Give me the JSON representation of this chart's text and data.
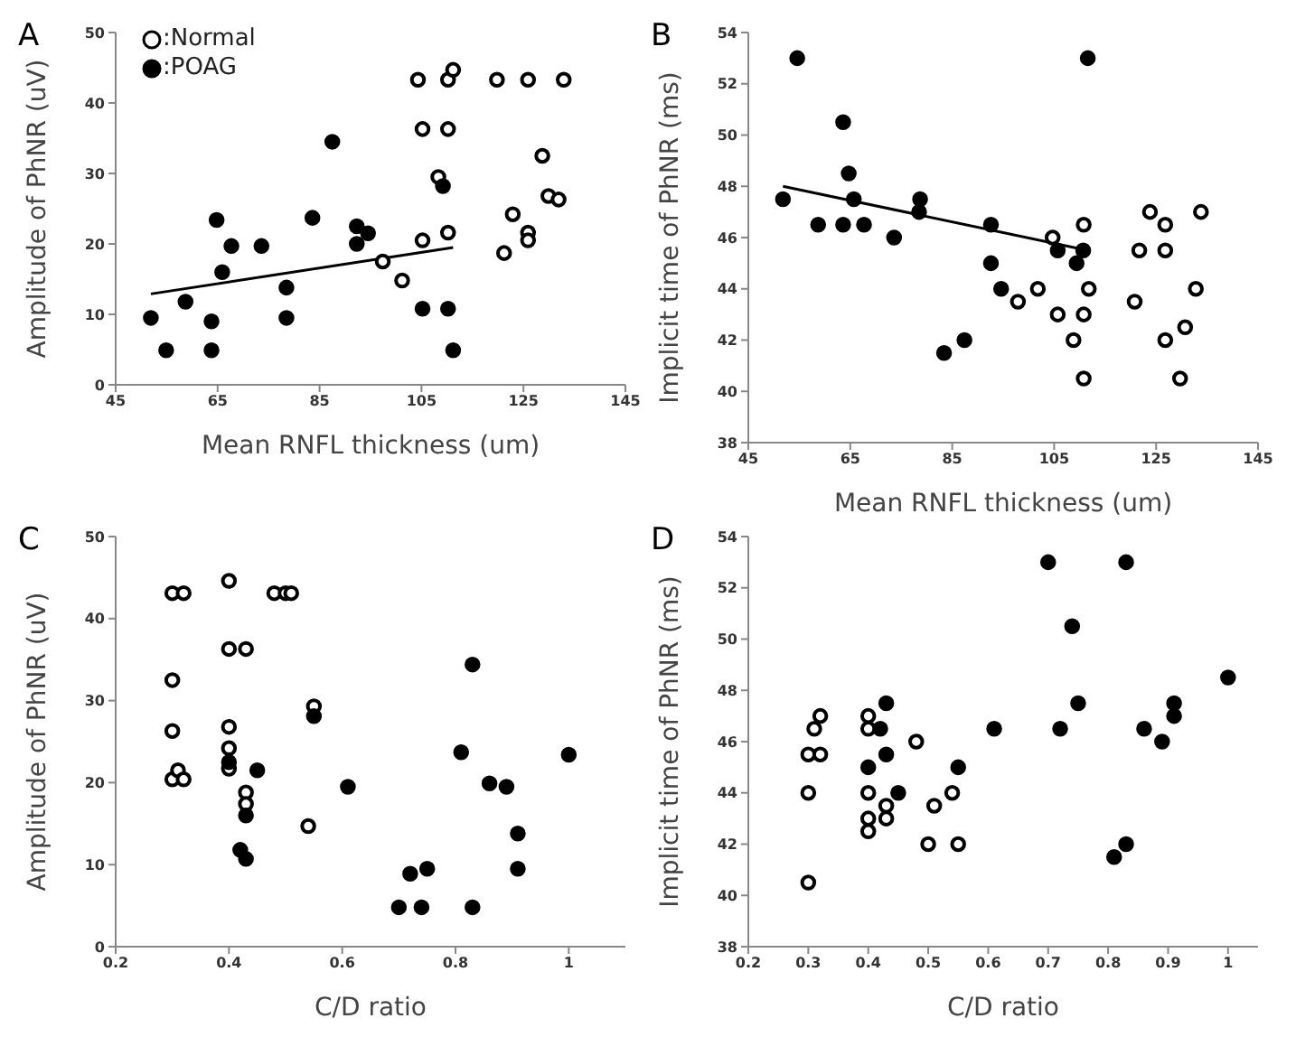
{
  "chart_data": [
    {
      "type": "scatter",
      "title": "A",
      "xlabel": "Mean RNFL thickness (um)",
      "ylabel": "Amplitude of PhNR (uV)",
      "xlim": [
        45,
        145
      ],
      "xticks": [
        45,
        65,
        85,
        105,
        125,
        145
      ],
      "ylim": [
        0,
        50
      ],
      "yticks": [
        0,
        10,
        20,
        30,
        40,
        50
      ],
      "grid": false,
      "legend": "top left",
      "marker": "circle",
      "series": [
        {
          "name": ":Normal",
          "color": "#ffffff",
          "x": [
            104.3,
            110.2,
            111.2,
            105.2,
            110.2,
            108.3,
            105.2,
            110.2,
            97.4,
            101.2,
            119.8,
            125.9,
            132.9,
            128.7,
            129.9,
            131.9,
            122.9,
            125.9,
            125.9,
            121.2
          ],
          "values": [
            43.3,
            43.3,
            44.7,
            36.3,
            36.3,
            29.5,
            20.5,
            21.6,
            17.5,
            14.8,
            43.3,
            43.3,
            43.3,
            32.5,
            26.8,
            26.3,
            24.2,
            21.6,
            20.5,
            18.7
          ]
        },
        {
          "name": ":POAG",
          "color": "#000000",
          "x": [
            51.9,
            54.9,
            58.7,
            63.8,
            63.8,
            64.8,
            65.9,
            67.7,
            73.6,
            78.5,
            78.5,
            83.6,
            87.5,
            92.3,
            92.3,
            94.5,
            109.2,
            105.2,
            110.2,
            111.2
          ],
          "values": [
            9.5,
            4.9,
            11.8,
            9.0,
            4.9,
            23.4,
            16.0,
            19.7,
            19.7,
            13.8,
            9.5,
            23.7,
            34.5,
            22.5,
            20.0,
            21.5,
            28.2,
            10.8,
            10.8,
            4.9
          ]
        },
        {
          "type": "line",
          "color": "#000000",
          "marker": "none",
          "line_style": "solid",
          "x": [
            51.9,
            111.2
          ],
          "values": [
            12.9,
            19.5
          ]
        }
      ]
    },
    {
      "type": "scatter",
      "title": "B",
      "xlabel": "Mean RNFL thickness (um)",
      "ylabel": "Implicit time of PhNR (ms)",
      "xlim": [
        45,
        145
      ],
      "xticks": [
        45,
        65,
        85,
        105,
        125,
        145
      ],
      "ylim": [
        38,
        54
      ],
      "yticks": [
        38,
        40,
        42,
        44,
        46,
        48,
        50,
        52,
        54
      ],
      "grid": false,
      "marker": "circle",
      "series": [
        {
          "color": "#ffffff",
          "x": [
            104.7,
            97.9,
            101.8,
            105.7,
            108.8,
            110.8,
            110.8,
            111.8,
            110.8,
            120.8,
            121.7,
            123.8,
            126.8,
            126.8,
            126.8,
            129.7,
            130.7,
            132.8,
            133.8
          ],
          "values": [
            46.0,
            43.5,
            44.0,
            43.0,
            42.0,
            43.0,
            46.5,
            44.0,
            40.5,
            43.5,
            45.5,
            47.0,
            46.5,
            45.5,
            42.0,
            40.5,
            42.5,
            44.0,
            47.0
          ]
        },
        {
          "color": "#000000",
          "x": [
            51.8,
            54.6,
            58.7,
            63.6,
            63.6,
            64.7,
            65.7,
            67.7,
            73.6,
            78.7,
            78.5,
            83.4,
            87.4,
            92.6,
            92.6,
            94.6,
            105.7,
            109.4,
            110.7,
            111.6
          ],
          "values": [
            47.5,
            53.0,
            46.5,
            46.5,
            50.5,
            48.5,
            47.5,
            46.5,
            46.0,
            47.5,
            47.0,
            41.5,
            42.0,
            46.5,
            45.0,
            44.0,
            45.5,
            45.0,
            45.5,
            53.0
          ]
        },
        {
          "type": "line",
          "color": "#000000",
          "marker": "none",
          "line_style": "solid",
          "x": [
            51.8,
            111.6
          ],
          "values": [
            48.0,
            45.5
          ]
        }
      ]
    },
    {
      "type": "scatter",
      "title": "C",
      "xlabel": "C/D ratio",
      "ylabel": "Amplitude of PhNR (uV)",
      "xlim": [
        0.2,
        1.1
      ],
      "xticks": [
        0.2,
        0.4,
        0.6,
        0.8,
        1
      ],
      "ylim": [
        0,
        50
      ],
      "yticks": [
        0,
        10,
        20,
        30,
        40,
        50
      ],
      "grid": false,
      "marker": "circle",
      "series": [
        {
          "color": "#ffffff",
          "x": [
            0.3,
            0.3,
            0.3,
            0.3,
            0.32,
            0.31,
            0.32,
            0.4,
            0.4,
            0.43,
            0.4,
            0.4,
            0.4,
            0.43,
            0.43,
            0.48,
            0.5,
            0.51,
            0.55,
            0.54
          ],
          "values": [
            20.4,
            26.3,
            32.5,
            43.1,
            43.1,
            21.5,
            20.4,
            44.6,
            36.3,
            36.3,
            26.8,
            24.2,
            21.7,
            18.8,
            17.4,
            43.1,
            43.1,
            43.1,
            29.3,
            14.7
          ]
        },
        {
          "color": "#000000",
          "x": [
            0.4,
            0.45,
            0.43,
            0.42,
            0.43,
            0.55,
            0.61,
            0.7,
            0.72,
            0.74,
            0.75,
            0.81,
            0.83,
            0.83,
            0.86,
            0.89,
            0.91,
            0.91,
            1.0
          ],
          "values": [
            22.5,
            21.5,
            16.0,
            11.8,
            10.7,
            28.1,
            19.5,
            4.8,
            8.9,
            4.8,
            9.5,
            23.7,
            34.4,
            4.8,
            19.9,
            19.5,
            13.8,
            9.5,
            23.4
          ]
        }
      ]
    },
    {
      "type": "scatter",
      "title": "D",
      "xlabel": "C/D ratio",
      "ylabel": "Implicit time of PhNR (ms)",
      "xlim": [
        0.2,
        1.05
      ],
      "xticks": [
        0.2,
        0.3,
        0.4,
        0.5,
        0.6,
        0.7,
        0.8,
        0.9,
        1
      ],
      "ylim": [
        38,
        54
      ],
      "yticks": [
        38,
        40,
        42,
        44,
        46,
        48,
        50,
        52,
        54
      ],
      "grid": false,
      "marker": "circle",
      "series": [
        {
          "color": "#ffffff",
          "x": [
            0.3,
            0.3,
            0.3,
            0.32,
            0.31,
            0.32,
            0.4,
            0.4,
            0.4,
            0.4,
            0.4,
            0.43,
            0.43,
            0.48,
            0.51,
            0.5,
            0.54,
            0.55
          ],
          "values": [
            40.5,
            44.0,
            45.5,
            45.5,
            46.5,
            47.0,
            47.0,
            46.5,
            44.0,
            43.0,
            42.5,
            43.5,
            43.0,
            46.0,
            43.5,
            42.0,
            44.0,
            42.0
          ]
        },
        {
          "color": "#000000",
          "x": [
            0.43,
            0.42,
            0.43,
            0.4,
            0.45,
            0.55,
            0.61,
            0.7,
            0.72,
            0.74,
            0.75,
            0.81,
            0.83,
            0.83,
            0.86,
            0.89,
            0.91,
            0.91,
            1.0
          ],
          "values": [
            47.5,
            46.5,
            45.5,
            45.0,
            44.0,
            45.0,
            46.5,
            53.0,
            46.5,
            50.5,
            47.5,
            41.5,
            42.0,
            53.0,
            46.5,
            46.0,
            47.5,
            47.0,
            48.5
          ]
        }
      ]
    }
  ]
}
